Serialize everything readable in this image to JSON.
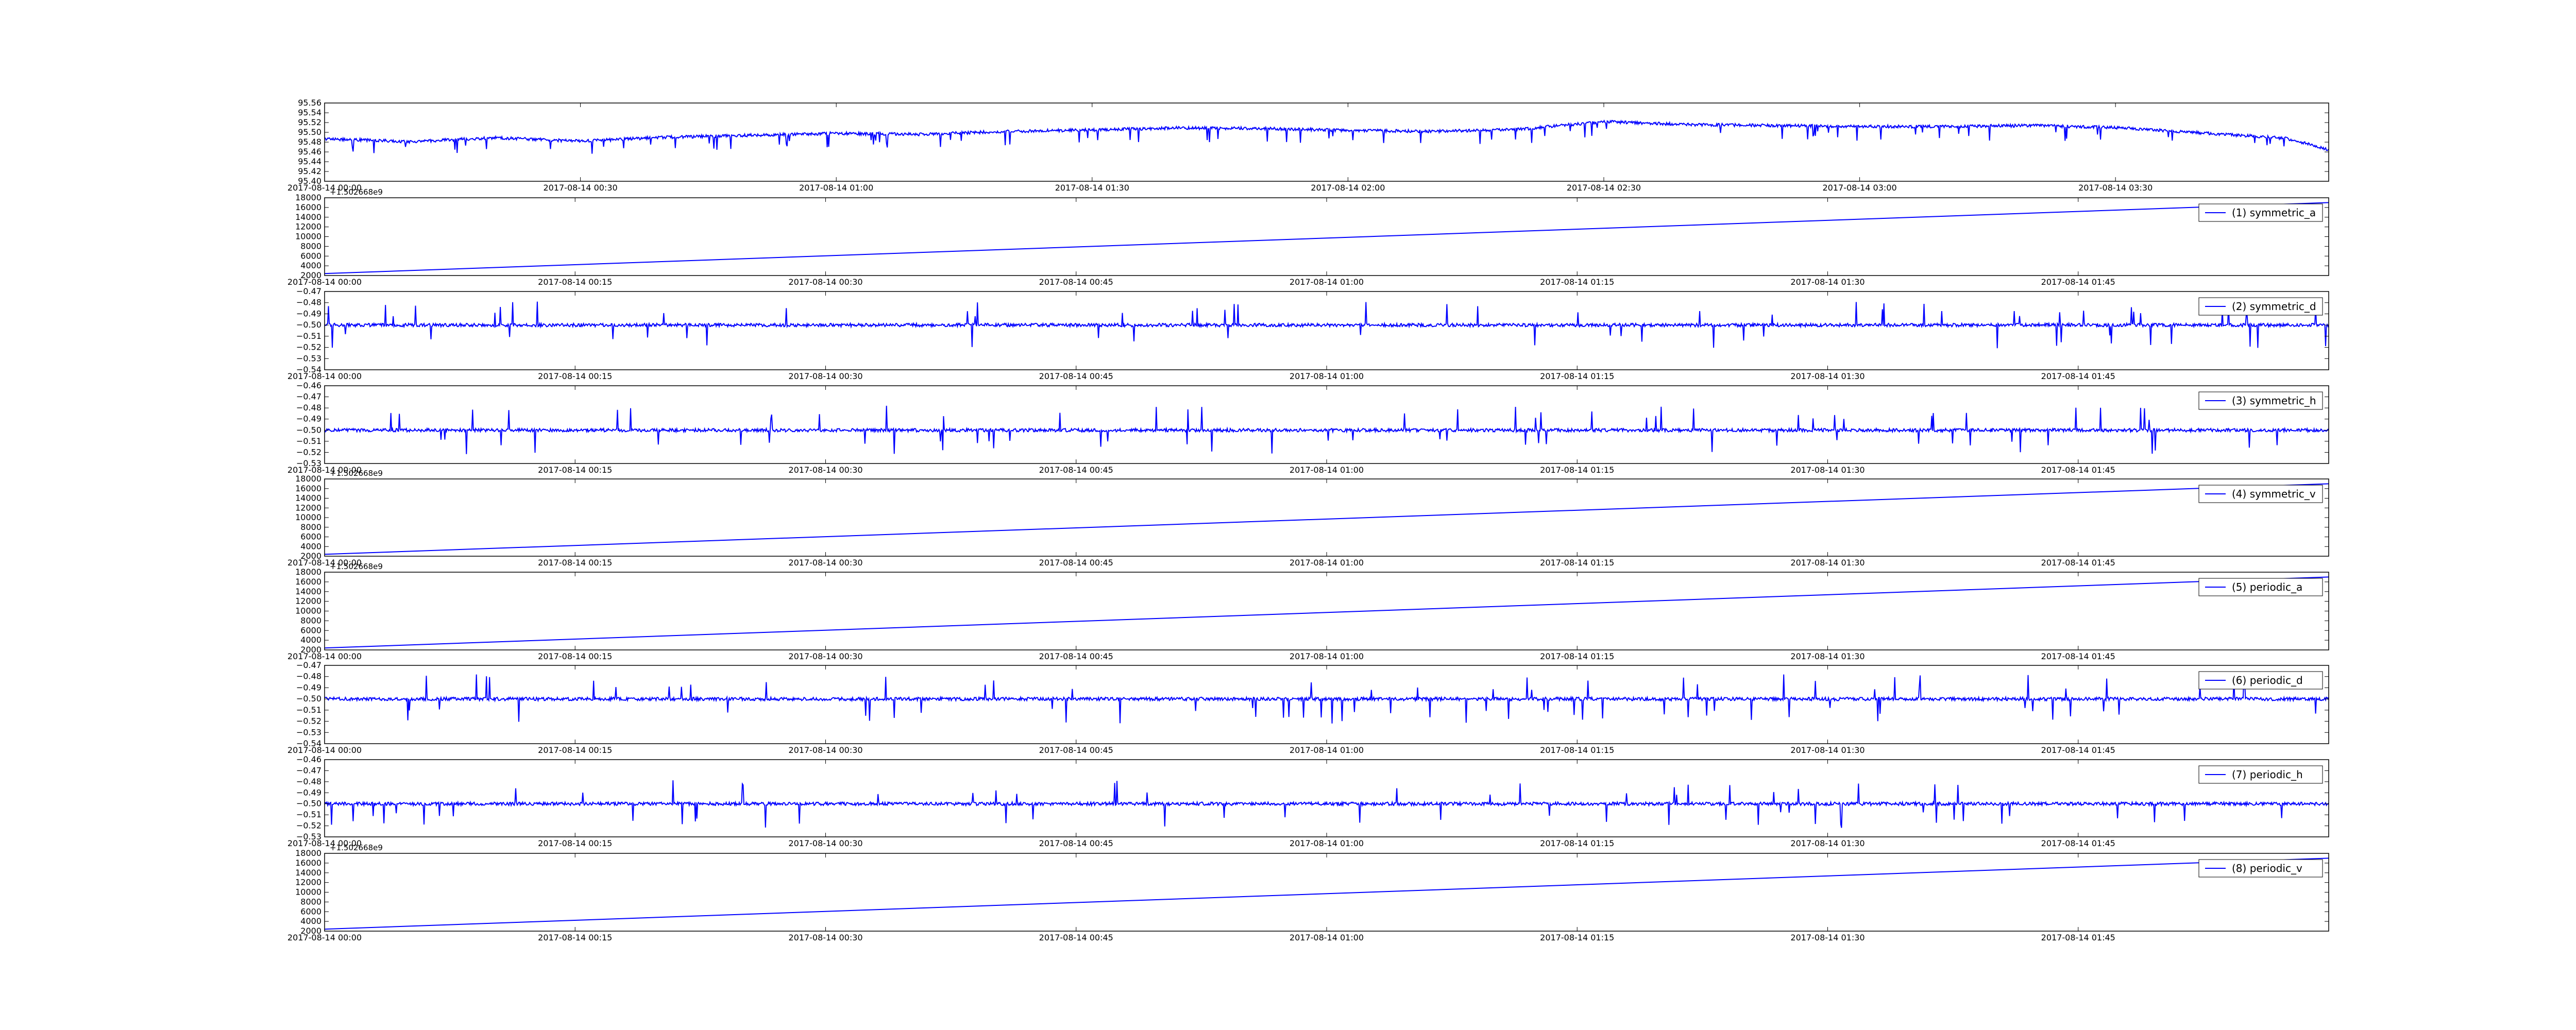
{
  "colors": {
    "line": "#0000ff",
    "axes": "#000000",
    "background": "#ffffff"
  },
  "chart_data": [
    {
      "type": "line",
      "legend": "",
      "legend_position": "none",
      "y_offset_label": "",
      "ylim": [
        95.4,
        95.56
      ],
      "yticks": [
        "95.40",
        "95.42",
        "95.44",
        "95.46",
        "95.48",
        "95.50",
        "95.52",
        "95.54",
        "95.56"
      ],
      "xlim": [
        "2017-08-14 00:00",
        "2017-08-14 03:55"
      ],
      "xticks": [
        "2017-08-14 00:00",
        "2017-08-14 00:30",
        "2017-08-14 01:00",
        "2017-08-14 01:30",
        "2017-08-14 02:00",
        "2017-08-14 02:30",
        "2017-08-14 03:00",
        "2017-08-14 03:30"
      ],
      "pattern": "noisy",
      "trend": [
        [
          "2017-08-14 00:00",
          95.487
        ],
        [
          "2017-08-14 00:10",
          95.481
        ],
        [
          "2017-08-14 00:20",
          95.489
        ],
        [
          "2017-08-14 00:30",
          95.482
        ],
        [
          "2017-08-14 00:40",
          95.49
        ],
        [
          "2017-08-14 00:50",
          95.494
        ],
        [
          "2017-08-14 01:00",
          95.498
        ],
        [
          "2017-08-14 01:10",
          95.496
        ],
        [
          "2017-08-14 01:20",
          95.502
        ],
        [
          "2017-08-14 01:30",
          95.505
        ],
        [
          "2017-08-14 01:40",
          95.509
        ],
        [
          "2017-08-14 01:50",
          95.508
        ],
        [
          "2017-08-14 02:00",
          95.504
        ],
        [
          "2017-08-14 02:10",
          95.502
        ],
        [
          "2017-08-14 02:20",
          95.506
        ],
        [
          "2017-08-14 02:30",
          95.522
        ],
        [
          "2017-08-14 02:40",
          95.516
        ],
        [
          "2017-08-14 02:50",
          95.514
        ],
        [
          "2017-08-14 03:00",
          95.512
        ],
        [
          "2017-08-14 03:10",
          95.512
        ],
        [
          "2017-08-14 03:20",
          95.514
        ],
        [
          "2017-08-14 03:30",
          95.51
        ],
        [
          "2017-08-14 03:40",
          95.499
        ],
        [
          "2017-08-14 03:50",
          95.488
        ],
        [
          "2017-08-14 03:55",
          95.465
        ]
      ],
      "noise_amplitude": 0.003,
      "spike_depth": 0.03,
      "spike_direction": "down"
    },
    {
      "type": "line",
      "legend": "(1) symmetric_a",
      "legend_position": "top-right",
      "y_offset_label": "+1.502668e9",
      "ylim": [
        2000,
        18000
      ],
      "yticks": [
        "2000",
        "4000",
        "6000",
        "8000",
        "10000",
        "12000",
        "14000",
        "16000",
        "18000"
      ],
      "xlim": [
        "2017-08-14 00:00",
        "2017-08-14 02:00"
      ],
      "xticks": [
        "2017-08-14 00:00",
        "2017-08-14 00:15",
        "2017-08-14 00:30",
        "2017-08-14 00:45",
        "2017-08-14 01:00",
        "2017-08-14 01:15",
        "2017-08-14 01:30",
        "2017-08-14 01:45"
      ],
      "pattern": "linear",
      "trend": [
        [
          "2017-08-14 00:00",
          2400
        ],
        [
          "2017-08-14 02:00",
          17000
        ]
      ]
    },
    {
      "type": "line",
      "legend": "(2) symmetric_d",
      "legend_position": "top-right",
      "y_offset_label": "",
      "ylim": [
        -0.54,
        -0.47
      ],
      "yticks": [
        "−0.54",
        "−0.53",
        "−0.52",
        "−0.51",
        "−0.50",
        "−0.49",
        "−0.48",
        "−0.47"
      ],
      "xlim": [
        "2017-08-14 00:00",
        "2017-08-14 02:00"
      ],
      "xticks": [
        "2017-08-14 00:00",
        "2017-08-14 00:15",
        "2017-08-14 00:30",
        "2017-08-14 00:45",
        "2017-08-14 01:00",
        "2017-08-14 01:15",
        "2017-08-14 01:30",
        "2017-08-14 01:45"
      ],
      "pattern": "noisy",
      "trend": [
        [
          "2017-08-14 00:00",
          -0.5
        ],
        [
          "2017-08-14 02:00",
          -0.5
        ]
      ],
      "noise_amplitude": 0.0015,
      "spike_depth": 0.022,
      "spike_direction": "both"
    },
    {
      "type": "line",
      "legend": "(3) symmetric_h",
      "legend_position": "top-right",
      "y_offset_label": "",
      "ylim": [
        -0.53,
        -0.46
      ],
      "yticks": [
        "−0.53",
        "−0.52",
        "−0.51",
        "−0.50",
        "−0.49",
        "−0.48",
        "−0.47",
        "−0.46"
      ],
      "xlim": [
        "2017-08-14 00:00",
        "2017-08-14 02:00"
      ],
      "xticks": [
        "2017-08-14 00:00",
        "2017-08-14 00:15",
        "2017-08-14 00:30",
        "2017-08-14 00:45",
        "2017-08-14 01:00",
        "2017-08-14 01:15",
        "2017-08-14 01:30",
        "2017-08-14 01:45"
      ],
      "pattern": "noisy",
      "trend": [
        [
          "2017-08-14 00:00",
          -0.5
        ],
        [
          "2017-08-14 02:00",
          -0.5
        ]
      ],
      "noise_amplitude": 0.0015,
      "spike_depth": 0.022,
      "spike_direction": "both"
    },
    {
      "type": "line",
      "legend": "(4) symmetric_v",
      "legend_position": "top-right",
      "y_offset_label": "+1.502668e9",
      "ylim": [
        2000,
        18000
      ],
      "yticks": [
        "2000",
        "4000",
        "6000",
        "8000",
        "10000",
        "12000",
        "14000",
        "16000",
        "18000"
      ],
      "xlim": [
        "2017-08-14 00:00",
        "2017-08-14 02:00"
      ],
      "xticks": [
        "2017-08-14 00:00",
        "2017-08-14 00:15",
        "2017-08-14 00:30",
        "2017-08-14 00:45",
        "2017-08-14 01:00",
        "2017-08-14 01:15",
        "2017-08-14 01:30",
        "2017-08-14 01:45"
      ],
      "pattern": "linear",
      "trend": [
        [
          "2017-08-14 00:00",
          2400
        ],
        [
          "2017-08-14 02:00",
          17000
        ]
      ]
    },
    {
      "type": "line",
      "legend": "(5) periodic_a",
      "legend_position": "top-right",
      "y_offset_label": "+1.502668e9",
      "ylim": [
        2000,
        18000
      ],
      "yticks": [
        "2000",
        "4000",
        "6000",
        "8000",
        "10000",
        "12000",
        "14000",
        "16000",
        "18000"
      ],
      "xlim": [
        "2017-08-14 00:00",
        "2017-08-14 02:00"
      ],
      "xticks": [
        "2017-08-14 00:00",
        "2017-08-14 00:15",
        "2017-08-14 00:30",
        "2017-08-14 00:45",
        "2017-08-14 01:00",
        "2017-08-14 01:15",
        "2017-08-14 01:30",
        "2017-08-14 01:45"
      ],
      "pattern": "linear",
      "trend": [
        [
          "2017-08-14 00:00",
          2400
        ],
        [
          "2017-08-14 02:00",
          17000
        ]
      ]
    },
    {
      "type": "line",
      "legend": "(6) periodic_d",
      "legend_position": "top-right",
      "y_offset_label": "",
      "ylim": [
        -0.54,
        -0.47
      ],
      "yticks": [
        "−0.54",
        "−0.53",
        "−0.52",
        "−0.51",
        "−0.50",
        "−0.49",
        "−0.48",
        "−0.47"
      ],
      "xlim": [
        "2017-08-14 00:00",
        "2017-08-14 02:00"
      ],
      "xticks": [
        "2017-08-14 00:00",
        "2017-08-14 00:15",
        "2017-08-14 00:30",
        "2017-08-14 00:45",
        "2017-08-14 01:00",
        "2017-08-14 01:15",
        "2017-08-14 01:30",
        "2017-08-14 01:45"
      ],
      "pattern": "noisy",
      "trend": [
        [
          "2017-08-14 00:00",
          -0.5
        ],
        [
          "2017-08-14 02:00",
          -0.5
        ]
      ],
      "noise_amplitude": 0.0015,
      "spike_depth": 0.022,
      "spike_direction": "both"
    },
    {
      "type": "line",
      "legend": "(7) periodic_h",
      "legend_position": "top-right",
      "y_offset_label": "",
      "ylim": [
        -0.53,
        -0.46
      ],
      "yticks": [
        "−0.53",
        "−0.52",
        "−0.51",
        "−0.50",
        "−0.49",
        "−0.48",
        "−0.47",
        "−0.46"
      ],
      "xlim": [
        "2017-08-14 00:00",
        "2017-08-14 02:00"
      ],
      "xticks": [
        "2017-08-14 00:00",
        "2017-08-14 00:15",
        "2017-08-14 00:30",
        "2017-08-14 00:45",
        "2017-08-14 01:00",
        "2017-08-14 01:15",
        "2017-08-14 01:30",
        "2017-08-14 01:45"
      ],
      "pattern": "noisy",
      "trend": [
        [
          "2017-08-14 00:00",
          -0.5
        ],
        [
          "2017-08-14 02:00",
          -0.5
        ]
      ],
      "noise_amplitude": 0.0015,
      "spike_depth": 0.022,
      "spike_direction": "both"
    },
    {
      "type": "line",
      "legend": "(8) periodic_v",
      "legend_position": "top-right",
      "y_offset_label": "+1.502668e9",
      "ylim": [
        2000,
        18000
      ],
      "yticks": [
        "2000",
        "4000",
        "6000",
        "8000",
        "10000",
        "12000",
        "14000",
        "16000",
        "18000"
      ],
      "xlim": [
        "2017-08-14 00:00",
        "2017-08-14 02:00"
      ],
      "xticks": [
        "2017-08-14 00:00",
        "2017-08-14 00:15",
        "2017-08-14 00:30",
        "2017-08-14 00:45",
        "2017-08-14 01:00",
        "2017-08-14 01:15",
        "2017-08-14 01:30",
        "2017-08-14 01:45"
      ],
      "pattern": "linear",
      "trend": [
        [
          "2017-08-14 00:00",
          2400
        ],
        [
          "2017-08-14 02:00",
          17000
        ]
      ]
    }
  ]
}
